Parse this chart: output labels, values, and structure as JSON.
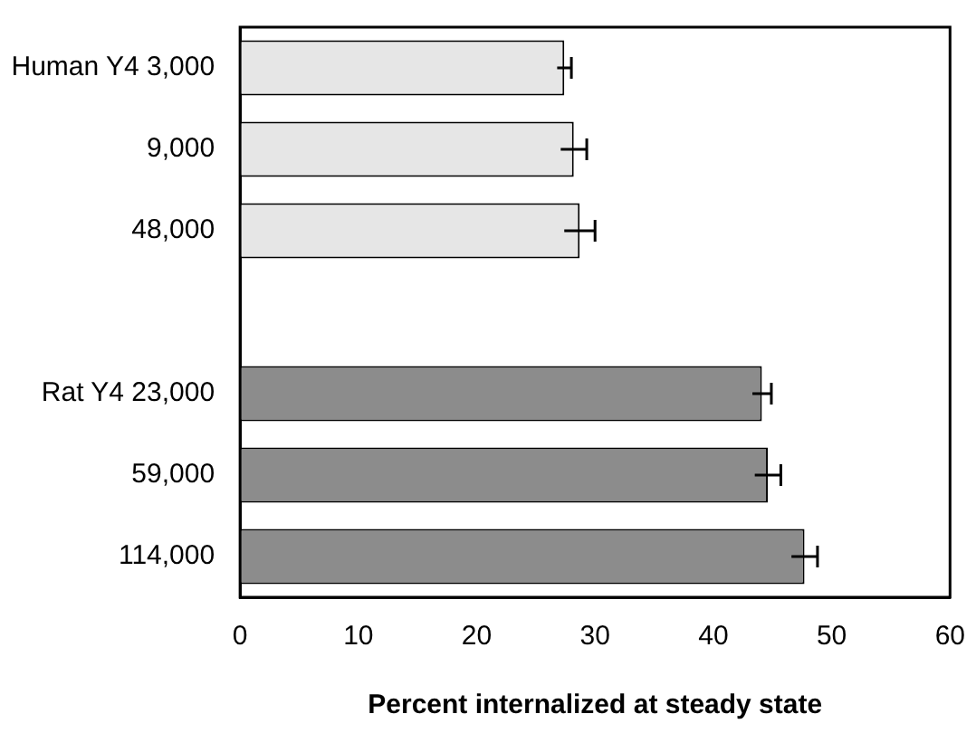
{
  "chart_data": {
    "type": "bar",
    "orientation": "horizontal",
    "xlabel": "Percent internalized at steady state",
    "categories": [
      "Human Y4 3,000",
      "9,000",
      "48,000",
      null,
      "Rat Y4 23,000",
      "59,000",
      "114,000"
    ],
    "values": [
      27.4,
      28.2,
      28.7,
      null,
      44.1,
      44.6,
      47.7
    ],
    "errors": [
      0.6,
      1.1,
      1.3,
      null,
      0.8,
      1.1,
      1.1
    ],
    "colors": [
      "#e6e6e6",
      "#e6e6e6",
      "#e6e6e6",
      "#ffffff",
      "#8c8c8c",
      "#8c8c8c",
      "#8c8c8c"
    ],
    "xlim": [
      0,
      60
    ],
    "xticks": [
      0,
      10,
      20,
      30,
      40,
      50,
      60
    ],
    "grid": false,
    "legend": false
  }
}
